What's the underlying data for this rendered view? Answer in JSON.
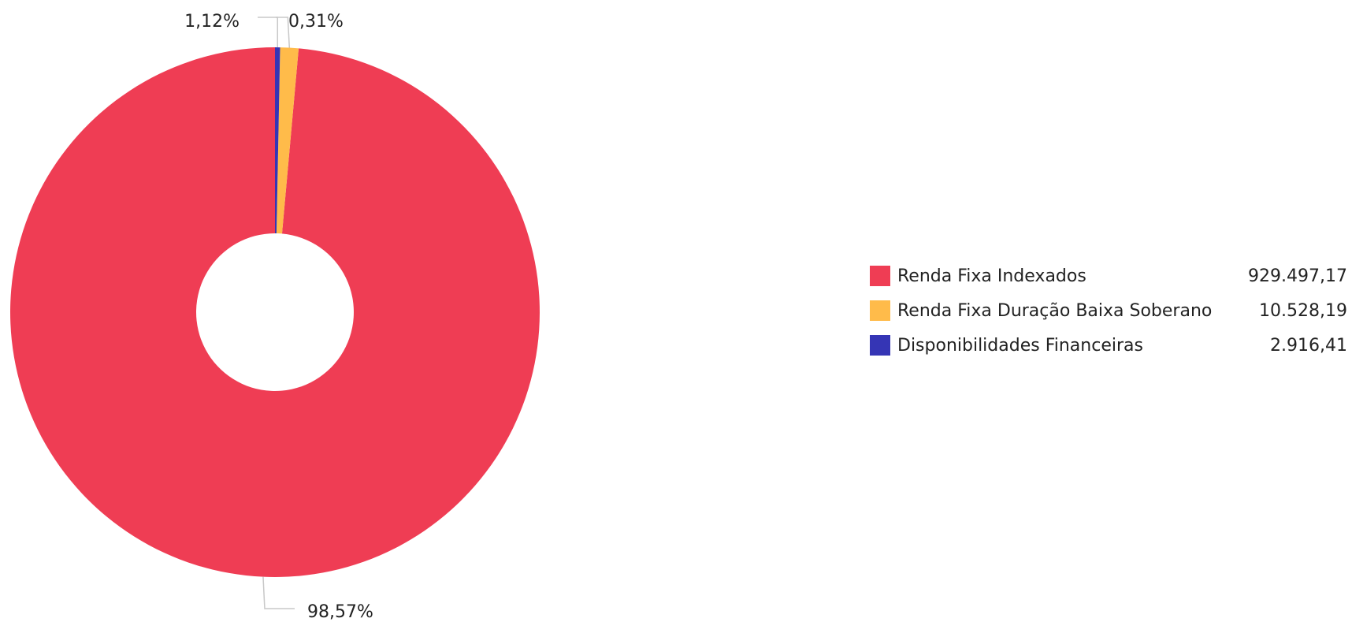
{
  "chart_data": {
    "type": "pie",
    "variant": "donut",
    "title": "",
    "slices": [
      {
        "label": "Renda Fixa Indexados",
        "value": 929497.17,
        "value_text": "929.497,17",
        "percent": 98.57,
        "percent_text": "98,57%",
        "color": "#ef3d54"
      },
      {
        "label": "Renda Fixa Duração Baixa Soberano",
        "value": 10528.19,
        "value_text": "10.528,19",
        "percent": 1.12,
        "percent_text": "1,12%",
        "color": "#ffbb4a"
      },
      {
        "label": "Disponibilidades Financeiras",
        "value": 2916.41,
        "value_text": "2.916,41",
        "percent": 0.31,
        "percent_text": "0,31%",
        "color": "#3535b5"
      }
    ],
    "legend_position": "right",
    "leader_line_color": "#c8c8c8"
  }
}
